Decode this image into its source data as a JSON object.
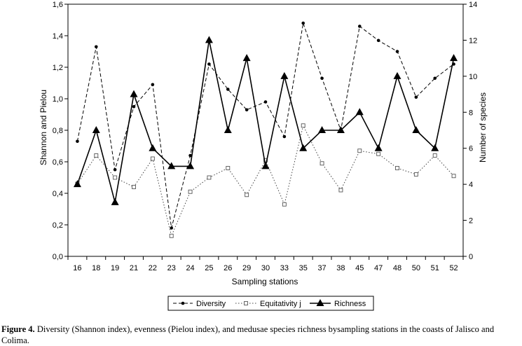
{
  "chart_data": {
    "type": "line",
    "xlabel": "Sampling stations",
    "ylabel_left": "Shannon and Pielou",
    "ylabel_right": "Number of species",
    "categories": [
      "16",
      "18",
      "19",
      "21",
      "22",
      "23",
      "24",
      "25",
      "26",
      "29",
      "30",
      "33",
      "35",
      "37",
      "38",
      "45",
      "47",
      "48",
      "50",
      "51",
      "52"
    ],
    "ylim_left": [
      0,
      1.6
    ],
    "yticks_left": [
      "0,0",
      "0,2",
      "0,4",
      "0,6",
      "0,8",
      "1,0",
      "1,2",
      "1,4",
      "1,6"
    ],
    "ylim_right": [
      0,
      14
    ],
    "yticks_right": [
      "0",
      "2",
      "4",
      "6",
      "8",
      "10",
      "12",
      "14"
    ],
    "grid": false,
    "legend_position": "bottom",
    "series": [
      {
        "name": "Diversity",
        "axis": "left",
        "style": "dashed",
        "values": [
          0.73,
          1.33,
          0.55,
          0.95,
          1.09,
          0.18,
          0.64,
          1.22,
          1.06,
          0.93,
          0.98,
          0.76,
          1.48,
          1.13,
          0.8,
          1.46,
          1.37,
          1.3,
          1.01,
          1.13,
          1.22
        ]
      },
      {
        "name": "Equitativity j",
        "axis": "left",
        "style": "dotted",
        "values": [
          0.46,
          0.64,
          0.5,
          0.44,
          0.62,
          0.13,
          0.41,
          0.5,
          0.56,
          0.39,
          0.61,
          0.33,
          0.83,
          0.59,
          0.42,
          0.67,
          0.65,
          0.56,
          0.52,
          0.64,
          0.51
        ]
      },
      {
        "name": "Richness",
        "axis": "right",
        "style": "solid",
        "values": [
          4,
          7,
          3,
          9,
          6,
          5,
          5,
          12,
          7,
          11,
          5,
          10,
          6,
          7,
          7,
          8,
          6,
          10,
          7,
          6,
          11
        ]
      }
    ]
  },
  "caption": {
    "label": "Figure 4.",
    "text": " Diversity (Shannon index), evenness (Pielou index), and medusae species richness bysampling stations in the coasts of Jalisco and Colima."
  }
}
